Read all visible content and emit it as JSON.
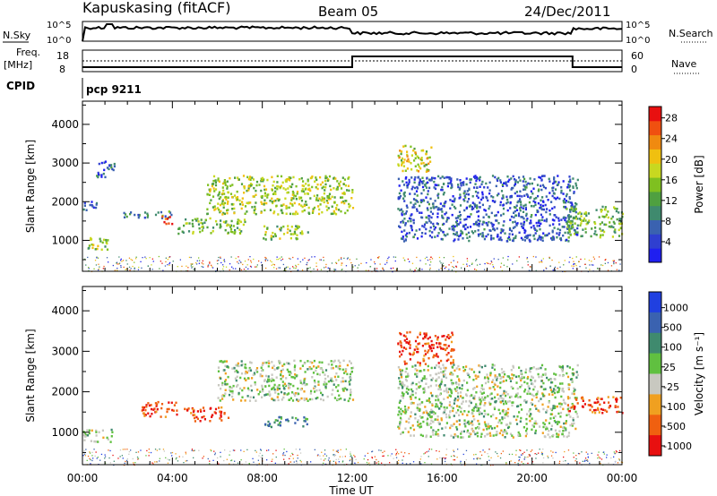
{
  "header": {
    "station": "Kapuskasing (fitACF)",
    "beam": "Beam 05",
    "date": "24/Dec/2011"
  },
  "strip": {
    "nsky_label": "N.Sky",
    "nsky_ticks": [
      "10^5",
      "10^0"
    ],
    "nsearch_label": "N.Search",
    "nsearch_ticks": [
      "10^5",
      "10^0"
    ],
    "freq_label": "Freq.",
    "freq_unit": "[MHz]",
    "freq_ticks": [
      "18",
      "8"
    ],
    "nave_label": "Nave",
    "nave_ticks": [
      "60",
      "0"
    ],
    "cpid_label": "CPID",
    "cpid_value": "pcp 9211"
  },
  "chart_data": [
    {
      "type": "heatmap",
      "title": "",
      "xlabel": "",
      "ylabel": "Slant Range [km]",
      "x_range_hours": [
        0,
        24
      ],
      "ylim": [
        200,
        4600
      ],
      "y_ticks": [
        1000,
        2000,
        3000,
        4000
      ],
      "colorbar": {
        "label": "Power [dB]",
        "ticks": [
          "4",
          "8",
          "12",
          "16",
          "20",
          "24",
          "28"
        ],
        "colors": [
          "#1f1ff0",
          "#2f3fd0",
          "#3a62b0",
          "#3f8a6e",
          "#4fa040",
          "#7fc020",
          "#c8d820",
          "#f0c010",
          "#f08a10",
          "#f05010",
          "#e81010"
        ]
      },
      "echo_regions": [
        {
          "t": [
            0.0,
            1.1
          ],
          "r": [
            780,
            1100
          ],
          "level": 0.5
        },
        {
          "t": [
            0.0,
            0.6
          ],
          "r": [
            1750,
            2050
          ],
          "level": 0.2
        },
        {
          "t": [
            0.6,
            1.4
          ],
          "r": [
            2650,
            3100
          ],
          "level": 0.2
        },
        {
          "t": [
            1.8,
            4.0
          ],
          "r": [
            1600,
            1780
          ],
          "level": 0.3
        },
        {
          "t": [
            3.5,
            4.0
          ],
          "r": [
            1400,
            1650
          ],
          "level": 0.9
        },
        {
          "t": [
            4.2,
            7.2
          ],
          "r": [
            1200,
            1600
          ],
          "level": 0.45
        },
        {
          "t": [
            5.5,
            12.0
          ],
          "r": [
            1700,
            2700
          ],
          "level": 0.55
        },
        {
          "t": [
            8.0,
            10.0
          ],
          "r": [
            1050,
            1400
          ],
          "level": 0.5
        },
        {
          "t": [
            14.0,
            22.0
          ],
          "r": [
            1000,
            2700
          ],
          "level": 0.2
        },
        {
          "t": [
            14.0,
            15.5
          ],
          "r": [
            2800,
            3500
          ],
          "level": 0.6
        },
        {
          "t": [
            21.5,
            24.0
          ],
          "r": [
            1100,
            1900
          ],
          "level": 0.45
        }
      ]
    },
    {
      "type": "heatmap",
      "title": "",
      "xlabel": "Time UT",
      "ylabel": "Slant Range [km]",
      "x_range_hours": [
        0,
        24
      ],
      "x_ticks": [
        "00:00",
        "04:00",
        "08:00",
        "12:00",
        "16:00",
        "20:00",
        "00:00"
      ],
      "ylim": [
        200,
        4600
      ],
      "y_ticks": [
        1000,
        2000,
        3000,
        4000
      ],
      "colorbar": {
        "label": "Velocity [m s⁻¹]",
        "ticks": [
          "1000",
          "500",
          "100",
          "25",
          "-25",
          "-100",
          "-500",
          "-1000"
        ],
        "colors": [
          "#2040e0",
          "#3a62b0",
          "#3f8a6e",
          "#60c040",
          "#c8c8c0",
          "#f0a020",
          "#f06010",
          "#e81010"
        ]
      },
      "echo_regions": [
        {
          "t": [
            0.0,
            1.3
          ],
          "r": [
            780,
            1100
          ],
          "level": 0.5
        },
        {
          "t": [
            2.5,
            4.2
          ],
          "r": [
            1400,
            1780
          ],
          "level": 0.9
        },
        {
          "t": [
            4.5,
            6.5
          ],
          "r": [
            1300,
            1650
          ],
          "level": 0.85
        },
        {
          "t": [
            6.0,
            12.0
          ],
          "r": [
            1800,
            2800
          ],
          "level": 0.5
        },
        {
          "t": [
            8.0,
            10.0
          ],
          "r": [
            1150,
            1400
          ],
          "level": 0.3
        },
        {
          "t": [
            14.0,
            22.0
          ],
          "r": [
            900,
            2700
          ],
          "level": 0.5
        },
        {
          "t": [
            14.0,
            16.5
          ],
          "r": [
            2700,
            3500
          ],
          "level": 0.9
        },
        {
          "t": [
            21.5,
            24.0
          ],
          "r": [
            1500,
            1900
          ],
          "level": 0.85
        }
      ]
    }
  ],
  "time_axis_label": "Time UT",
  "nave_step_hours": [
    0.0,
    12.0,
    21.8,
    24.0
  ]
}
